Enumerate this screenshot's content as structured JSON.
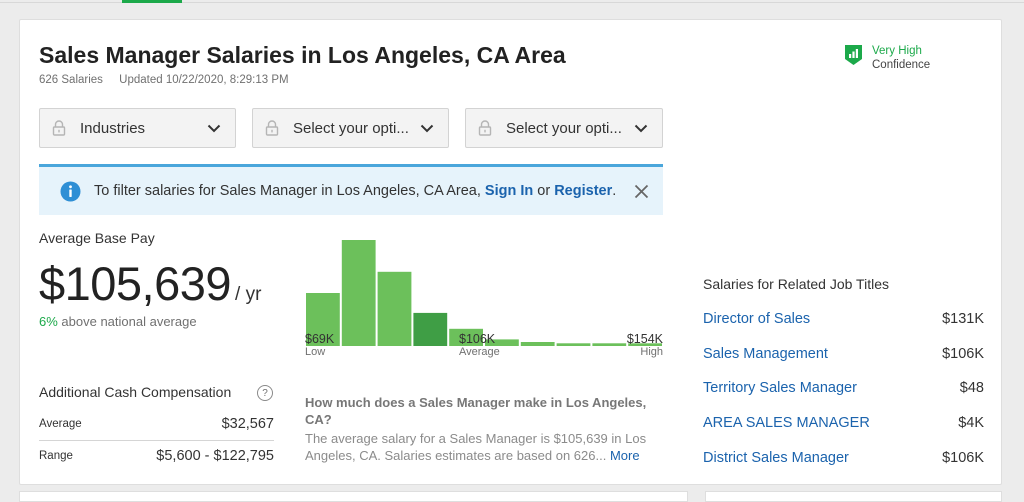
{
  "header": {
    "title": "Sales Manager Salaries in Los Angeles, CA Area",
    "salary_count": "626 Salaries",
    "updated": "Updated 10/22/2020, 8:29:13 PM",
    "confidence_level": "Very High",
    "confidence_label": "Confidence",
    "confidence_icon": "bar-chart-shield-icon",
    "accent_color": "#1ca94a"
  },
  "filters": [
    {
      "label": "Industries"
    },
    {
      "label": "Select your opti..."
    },
    {
      "label": "Select your opti..."
    }
  ],
  "banner": {
    "pre": "To filter salaries for Sales Manager in Los Angeles, CA Area, ",
    "sign_in": "Sign In",
    "or": " or ",
    "register": "Register",
    "post": "."
  },
  "pay": {
    "label": "Average Base Pay",
    "amount": "$105,639",
    "unit": "/ yr",
    "above_pct": "6%",
    "above_text": " above national average"
  },
  "chart_data": {
    "type": "bar",
    "values": [
      40,
      80,
      56,
      25,
      13,
      5,
      3,
      2,
      2,
      2
    ],
    "highlight_index": 3,
    "colors": {
      "bar": "#6cc05b",
      "highlight": "#3f9e45"
    },
    "ticks": [
      {
        "value": "$69K",
        "label": "Low"
      },
      {
        "value": "$106K",
        "label": "Average"
      },
      {
        "value": "$154K",
        "label": "High"
      }
    ]
  },
  "cash": {
    "title": "Additional Cash Compensation",
    "help": "?",
    "rows": [
      {
        "label": "Average",
        "value": "$32,567"
      },
      {
        "label": "Range",
        "value": "$5,600 - $122,795"
      }
    ]
  },
  "faq": {
    "question": "How much does a Sales Manager make in Los Angeles, CA?",
    "answer": "The average salary for a Sales Manager is $105,639 in Los Angeles, CA. Salaries estimates are based on 626...",
    "more": "More"
  },
  "related": {
    "title": "Salaries for Related Job Titles",
    "items": [
      {
        "title": "Director of Sales",
        "salary": "$131K"
      },
      {
        "title": "Sales Management",
        "salary": "$106K"
      },
      {
        "title": "Territory Sales Manager",
        "salary": "$48"
      },
      {
        "title": "AREA SALES MANAGER",
        "salary": "$4K"
      },
      {
        "title": "District Sales Manager",
        "salary": "$106K"
      }
    ]
  }
}
